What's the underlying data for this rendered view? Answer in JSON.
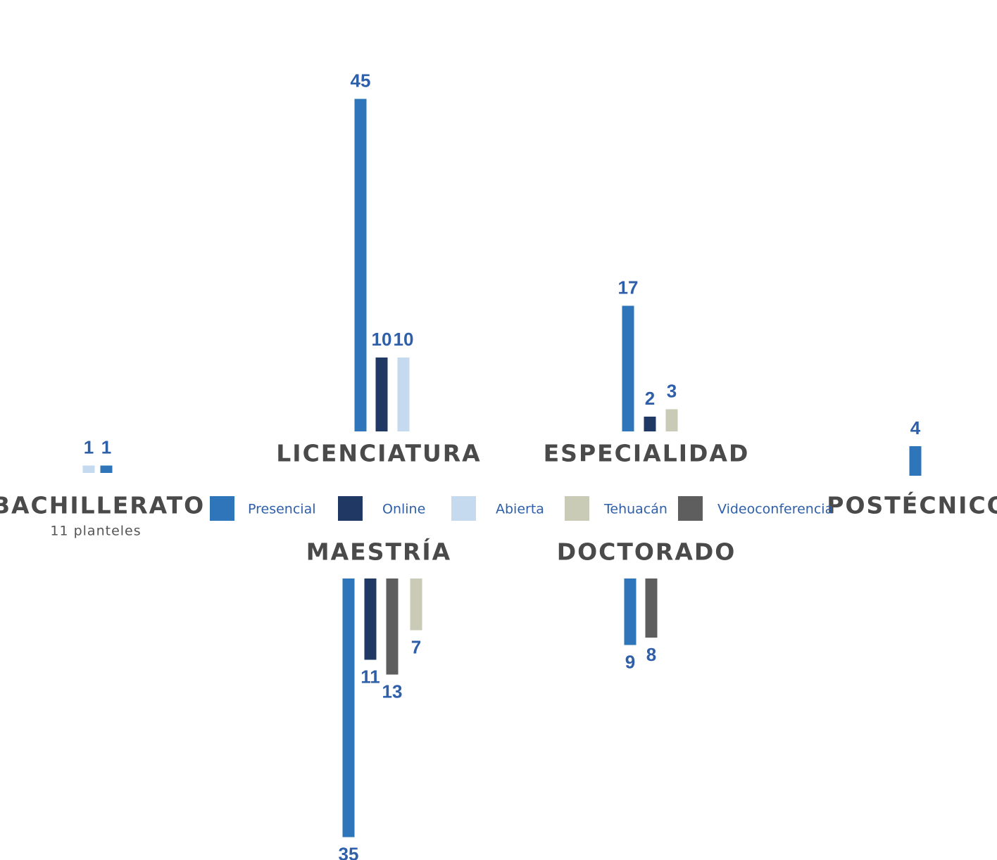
{
  "chart_data": {
    "type": "bar",
    "categories": [
      "BACHILLERATO",
      "LICENCIATURA",
      "ESPECIALIDAD",
      "POSTÉCNICO",
      "MAESTRÍA",
      "DOCTORADO"
    ],
    "annotation": "11 planteles",
    "series": [
      {
        "name": "Presencial",
        "color": "#2e75ba",
        "values": [
          1,
          45,
          17,
          4,
          35,
          9
        ]
      },
      {
        "name": "Online",
        "color": "#1f3864",
        "values": [
          null,
          10,
          2,
          null,
          11,
          null
        ]
      },
      {
        "name": "Abierta",
        "color": "#c5d9ef",
        "values": [
          1,
          10,
          null,
          null,
          null,
          null
        ]
      },
      {
        "name": "Tehuacán",
        "color": "#c9cbb6",
        "values": [
          null,
          null,
          3,
          null,
          7,
          null
        ]
      },
      {
        "name": "Videoconferencia",
        "color": "#5e5e5e",
        "values": [
          null,
          null,
          null,
          null,
          13,
          8
        ]
      }
    ]
  }
}
